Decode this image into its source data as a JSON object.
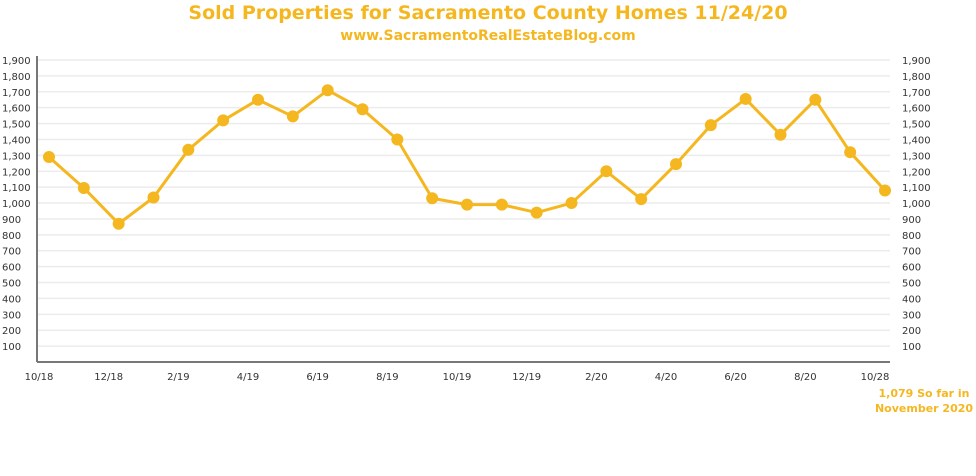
{
  "chart_data": {
    "type": "line",
    "title": "Sold Properties for Sacramento County Homes 11/24/20",
    "subtitle": "www.SacramentoRealEstateBlog.com",
    "xlabel": "",
    "ylabel": "",
    "x_tick_labels": [
      "10/18",
      "12/18",
      "2/19",
      "4/19",
      "6/19",
      "8/19",
      "10/19",
      "12/19",
      "2/20",
      "4/20",
      "6/20",
      "8/20",
      "10/28"
    ],
    "y_ticks": [
      100,
      200,
      300,
      400,
      500,
      600,
      700,
      800,
      900,
      1000,
      1100,
      1200,
      1300,
      1400,
      1500,
      1600,
      1700,
      1800,
      1900
    ],
    "ylim": [
      0,
      1900
    ],
    "grid": true,
    "series": [
      {
        "name": "Sold Properties",
        "color": "#f5b720",
        "values": [
          1290,
          1095,
          870,
          1035,
          1335,
          1520,
          1650,
          1545,
          1710,
          1590,
          1400,
          1030,
          990,
          990,
          940,
          1000,
          1200,
          1025,
          1245,
          1490,
          1655,
          1430,
          1650,
          1320,
          1079
        ]
      }
    ],
    "annotation": {
      "line1": "1,079 So far in",
      "line2": "November 2020"
    }
  }
}
